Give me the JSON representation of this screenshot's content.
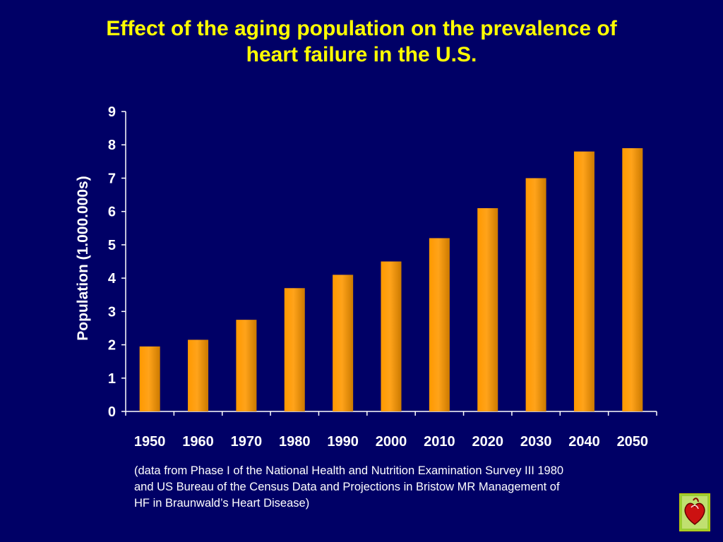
{
  "chart_data": {
    "type": "bar",
    "title_lines": [
      "Effect of the aging population on the prevalence of",
      "heart failure in the U.S."
    ],
    "ylabel": "Population (1.000.000s)",
    "xlabel": "",
    "categories": [
      "1950",
      "1960",
      "1970",
      "1980",
      "1990",
      "2000",
      "2010",
      "2020",
      "2030",
      "2040",
      "2050"
    ],
    "values": [
      1.95,
      2.15,
      2.75,
      3.7,
      4.1,
      4.5,
      5.2,
      6.1,
      7.0,
      7.8,
      7.9
    ],
    "ylim": [
      0,
      9
    ],
    "yticks": [
      0,
      1,
      2,
      3,
      4,
      5,
      6,
      7,
      8,
      9
    ],
    "grid": false,
    "bar_color": "#ff9900",
    "bar_shade_color": "#cc7a00",
    "axis_color": "#ffffff"
  },
  "footnote": {
    "lines": [
      "(data from Phase I of the National Health and Nutrition Examination Survey III 1980",
      "and US Bureau of the Census Data and Projections in Bristow MR Management of",
      "HF in Braunwald’s Heart Disease)"
    ]
  },
  "logo": {
    "icon": "heart-logo-icon"
  }
}
